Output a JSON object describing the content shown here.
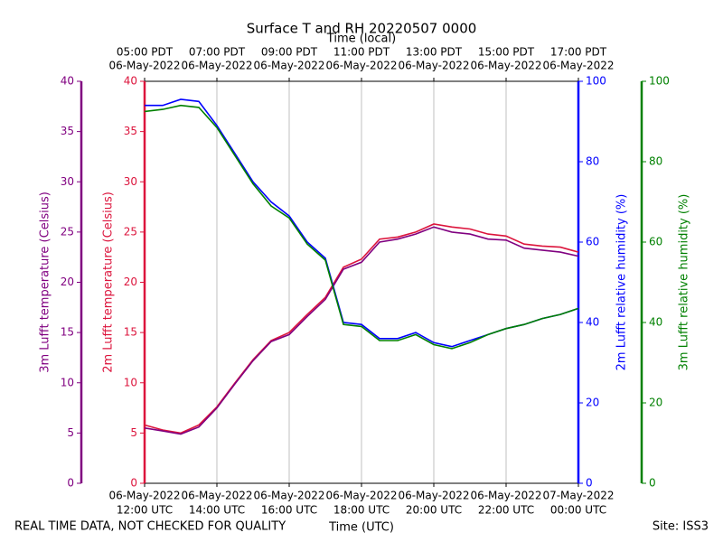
{
  "chart_data": {
    "type": "line",
    "title": "Surface T and RH 20220507 0000",
    "xlabel": "Time (UTC)",
    "x2label": "Time (local)",
    "footer_left": "REAL TIME DATA, NOT CHECKED FOR QUALITY",
    "footer_right": "Site: ISS3",
    "grid": true,
    "x": [
      "2022-05-06T12:00",
      "2022-05-06T12:30",
      "2022-05-06T13:00",
      "2022-05-06T13:30",
      "2022-05-06T14:00",
      "2022-05-06T14:30",
      "2022-05-06T15:00",
      "2022-05-06T15:30",
      "2022-05-06T16:00",
      "2022-05-06T16:30",
      "2022-05-06T17:00",
      "2022-05-06T17:30",
      "2022-05-06T18:00",
      "2022-05-06T18:30",
      "2022-05-06T19:00",
      "2022-05-06T19:30",
      "2022-05-06T20:00",
      "2022-05-06T20:30",
      "2022-05-06T21:00",
      "2022-05-06T21:30",
      "2022-05-06T22:00",
      "2022-05-06T22:30",
      "2022-05-06T23:00",
      "2022-05-06T23:30",
      "2022-05-07T00:00"
    ],
    "xlim": [
      "2022-05-06T12:00",
      "2022-05-07T00:00"
    ],
    "xticks": [
      {
        "value": "2022-05-06T12:00",
        "label": [
          "06-May-2022",
          "12:00 UTC"
        ]
      },
      {
        "value": "2022-05-06T14:00",
        "label": [
          "06-May-2022",
          "14:00 UTC"
        ]
      },
      {
        "value": "2022-05-06T16:00",
        "label": [
          "06-May-2022",
          "16:00 UTC"
        ]
      },
      {
        "value": "2022-05-06T18:00",
        "label": [
          "06-May-2022",
          "18:00 UTC"
        ]
      },
      {
        "value": "2022-05-06T20:00",
        "label": [
          "06-May-2022",
          "20:00 UTC"
        ]
      },
      {
        "value": "2022-05-06T22:00",
        "label": [
          "06-May-2022",
          "22:00 UTC"
        ]
      },
      {
        "value": "2022-05-07T00:00",
        "label": [
          "07-May-2022",
          "00:00 UTC"
        ]
      }
    ],
    "x2ticks": [
      {
        "value": "2022-05-06T12:00",
        "label": [
          "05:00 PDT",
          "06-May-2022"
        ]
      },
      {
        "value": "2022-05-06T14:00",
        "label": [
          "07:00 PDT",
          "06-May-2022"
        ]
      },
      {
        "value": "2022-05-06T16:00",
        "label": [
          "09:00 PDT",
          "06-May-2022"
        ]
      },
      {
        "value": "2022-05-06T18:00",
        "label": [
          "11:00 PDT",
          "06-May-2022"
        ]
      },
      {
        "value": "2022-05-06T20:00",
        "label": [
          "13:00 PDT",
          "06-May-2022"
        ]
      },
      {
        "value": "2022-05-06T22:00",
        "label": [
          "15:00 PDT",
          "06-May-2022"
        ]
      },
      {
        "value": "2022-05-07T00:00",
        "label": [
          "17:00 PDT",
          "06-May-2022"
        ]
      }
    ],
    "ylabel": "2m Lufft temperature (Celsius)",
    "ycolor": "#dc143c",
    "ylim": [
      0,
      40
    ],
    "yticks": [
      0,
      5,
      10,
      15,
      20,
      25,
      30,
      35,
      40
    ],
    "y2label": "2m Lufft relative humidity (%)",
    "y2color": "#0000ff",
    "y2lim": [
      0,
      100
    ],
    "y2ticks": [
      0,
      20,
      40,
      60,
      80,
      100
    ],
    "y3label": "3m Lufft temperature (Celsius)",
    "y3color": "#800080",
    "y3lim": [
      0,
      40
    ],
    "y3ticks": [
      0,
      5,
      10,
      15,
      20,
      25,
      30,
      35,
      40
    ],
    "y4label": "3m Lufft relative humidity (%)",
    "y4color": "#008000",
    "y4lim": [
      0,
      100
    ],
    "y4ticks": [
      0,
      20,
      40,
      60,
      80,
      100
    ],
    "series": [
      {
        "name": "2m Lufft temperature",
        "color": "#dc143c",
        "axis": "y",
        "values": [
          5.8,
          5.3,
          5.0,
          5.8,
          7.6,
          10.0,
          12.3,
          14.2,
          15.0,
          16.8,
          18.5,
          21.5,
          22.3,
          24.3,
          24.5,
          25.0,
          25.8,
          25.5,
          25.3,
          24.8,
          24.6,
          23.8,
          23.6,
          23.5,
          23.0
        ]
      },
      {
        "name": "3m Lufft temperature",
        "color": "#800080",
        "axis": "y3",
        "values": [
          5.5,
          5.2,
          4.9,
          5.6,
          7.5,
          9.9,
          12.2,
          14.1,
          14.8,
          16.6,
          18.3,
          21.3,
          22.0,
          24.0,
          24.3,
          24.8,
          25.5,
          25.0,
          24.8,
          24.3,
          24.2,
          23.4,
          23.2,
          23.0,
          22.6
        ]
      },
      {
        "name": "2m Lufft relative humidity",
        "color": "#0000ff",
        "axis": "y2",
        "values": [
          94,
          94,
          95.5,
          95,
          89,
          82,
          75,
          70,
          66.5,
          60,
          56,
          40,
          39.5,
          36,
          36,
          37.5,
          35,
          34,
          35.5,
          37,
          38.5,
          39.5,
          41,
          42,
          43.5
        ]
      },
      {
        "name": "3m Lufft relative humidity",
        "color": "#008000",
        "axis": "y4",
        "values": [
          92.5,
          93,
          94,
          93.5,
          88.5,
          81.5,
          74.5,
          69,
          66,
          59.5,
          55.5,
          39.5,
          39,
          35.5,
          35.5,
          37,
          34.5,
          33.5,
          35,
          37,
          38.5,
          39.5,
          41,
          42,
          43.5
        ]
      }
    ]
  }
}
